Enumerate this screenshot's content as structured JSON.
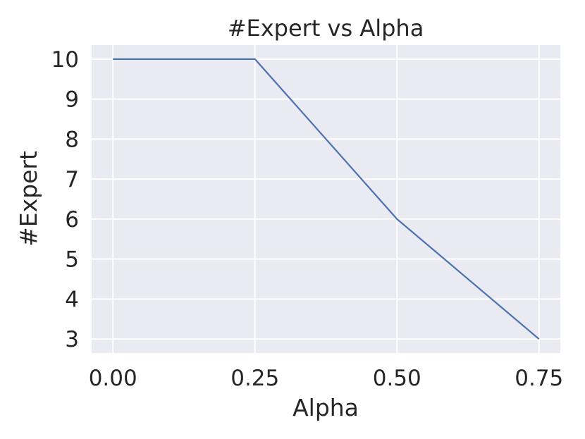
{
  "chart_data": {
    "type": "line",
    "title": "#Expert vs Alpha",
    "xlabel": "Alpha",
    "ylabel": "#Expert",
    "x": [
      0.0,
      0.25,
      0.5,
      0.75
    ],
    "series": [
      {
        "values": [
          10,
          10,
          6,
          3
        ],
        "color": "#4c72b0"
      }
    ],
    "xlim": [
      -0.0375,
      0.7875
    ],
    "ylim": [
      2.65,
      10.35
    ],
    "xticks": [
      0.0,
      0.25,
      0.5,
      0.75
    ],
    "xtick_labels": [
      "0.00",
      "0.25",
      "0.50",
      "0.75"
    ],
    "yticks": [
      3,
      4,
      5,
      6,
      7,
      8,
      9,
      10
    ],
    "ytick_labels": [
      "3",
      "4",
      "5",
      "6",
      "7",
      "8",
      "9",
      "10"
    ],
    "grid": true,
    "background_color": "#eaeaf2",
    "grid_color": "#ffffff"
  }
}
